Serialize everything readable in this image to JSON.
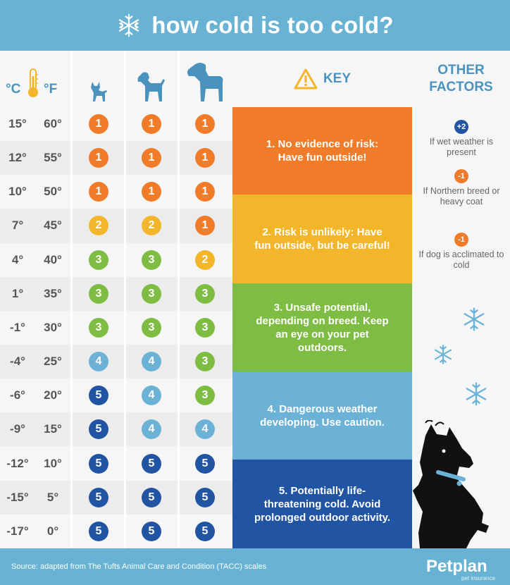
{
  "header": {
    "title": "how cold is too cold?"
  },
  "units": {
    "celsius": "°C",
    "fahrenheit": "°F"
  },
  "dog_sizes": [
    "small-dog-icon",
    "medium-dog-icon",
    "large-dog-icon"
  ],
  "rows": [
    {
      "c": "15°",
      "f": "60°",
      "levels": [
        "1",
        "1",
        "1"
      ]
    },
    {
      "c": "12°",
      "f": "55°",
      "levels": [
        "1",
        "1",
        "1"
      ]
    },
    {
      "c": "10°",
      "f": "50°",
      "levels": [
        "1",
        "1",
        "1"
      ]
    },
    {
      "c": "7°",
      "f": "45°",
      "levels": [
        "2",
        "2",
        "1"
      ]
    },
    {
      "c": "4°",
      "f": "40°",
      "levels": [
        "3",
        "3",
        "2"
      ]
    },
    {
      "c": "1°",
      "f": "35°",
      "levels": [
        "3",
        "3",
        "3"
      ]
    },
    {
      "c": "-1°",
      "f": "30°",
      "levels": [
        "3",
        "3",
        "3"
      ]
    },
    {
      "c": "-4°",
      "f": "25°",
      "levels": [
        "4",
        "4",
        "3"
      ]
    },
    {
      "c": "-6°",
      "f": "20°",
      "levels": [
        "5",
        "4",
        "3"
      ]
    },
    {
      "c": "-9°",
      "f": "15°",
      "levels": [
        "5",
        "4",
        "4"
      ]
    },
    {
      "c": "-12°",
      "f": "10°",
      "levels": [
        "5",
        "5",
        "5"
      ]
    },
    {
      "c": "-15°",
      "f": "5°",
      "levels": [
        "5",
        "5",
        "5"
      ]
    },
    {
      "c": "-17°",
      "f": "0°",
      "levels": [
        "5",
        "5",
        "5"
      ]
    }
  ],
  "level_colors": {
    "1": "#f07b28",
    "2": "#f3b52a",
    "3": "#7fbc43",
    "4": "#6cb2d6",
    "5": "#2154a3"
  },
  "key": {
    "label": "KEY",
    "items": [
      {
        "text": "1. No evidence of risk: Have fun outside!",
        "color": "#f07b28"
      },
      {
        "text": "2. Risk is unlikely: Have fun outside, but be careful!",
        "color": "#f3b52a"
      },
      {
        "text": "3. Unsafe potential, depending on breed. Keep an eye on your pet outdoors.",
        "color": "#7fbc43"
      },
      {
        "text": "4. Dangerous weather developing. Use caution.",
        "color": "#6cb2d6"
      },
      {
        "text": "5. Potentially life-threatening cold. Avoid prolonged outdoor activity.",
        "color": "#2154a3"
      }
    ]
  },
  "other_factors": {
    "title_line1": "OTHER",
    "title_line2": "FACTORS",
    "items": [
      {
        "badge": "+2",
        "text": "If wet weather is present",
        "color": "#2154a3"
      },
      {
        "badge": "-1",
        "text": "If Northern breed or heavy coat",
        "color": "#f07b28"
      },
      {
        "badge": "-1",
        "text": "If dog is acclimated to cold",
        "color": "#f07b28"
      }
    ]
  },
  "footer": {
    "source": "Source: adapted from The Tufts Animal Care and Condition (TACC) scales",
    "brand": "Petplan",
    "brand_sub": "pet insurance"
  }
}
